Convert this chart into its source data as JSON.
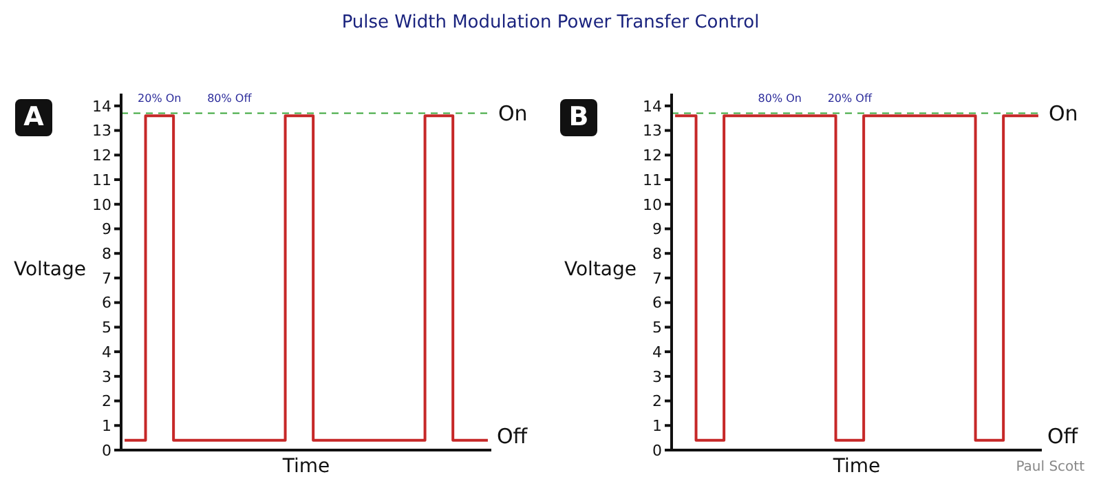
{
  "chart_data": [
    {
      "type": "step",
      "title": "Pulse Width Modulation Power Transfer Control",
      "subtitle": "A",
      "xlabel": "Time",
      "ylabel": "Voltage",
      "categories": [
        null,
        null,
        null,
        null,
        null,
        null,
        null,
        null,
        null,
        null,
        null,
        null,
        null,
        null,
        null,
        null,
        null,
        null,
        null,
        null,
        null,
        null,
        null,
        null,
        null,
        null,
        null,
        null,
        null,
        null,
        null,
        null,
        null,
        null,
        null,
        null,
        null,
        null,
        null,
        null,
        null,
        null,
        null,
        null,
        null,
        null,
        null,
        null,
        null,
        null,
        null,
        null,
        null
      ],
      "series": [
        {
          "color": "#c62828",
          "values": [
            0.4,
            0.4,
            0.4,
            13.6,
            13.6,
            13.6,
            13.6,
            0.4,
            0.4,
            0.4,
            0.4,
            0.4,
            0.4,
            0.4,
            0.4,
            0.4,
            0.4,
            0.4,
            0.4,
            0.4,
            0.4,
            0.4,
            0.4,
            13.6,
            13.6,
            13.6,
            13.6,
            0.4,
            0.4,
            0.4,
            0.4,
            0.4,
            0.4,
            0.4,
            0.4,
            0.4,
            0.4,
            0.4,
            0.4,
            0.4,
            0.4,
            0.4,
            0.4,
            13.6,
            13.6,
            13.6,
            13.6,
            0.4,
            0.4,
            0.4,
            0.4,
            0.4,
            0.4
          ]
        }
      ],
      "ylim": [
        0,
        14.5
      ],
      "yticks": [
        0,
        1,
        2,
        3,
        4,
        5,
        6,
        7,
        8,
        9,
        10,
        11,
        12,
        13,
        14
      ],
      "tick_labels": "y",
      "ref_lines": [
        {
          "axis": "y",
          "value": 13.7,
          "label": "On",
          "color": "#3aa63a",
          "line_style": "dashed"
        }
      ],
      "annotations": [
        "20% On",
        "80% Off",
        "Off"
      ]
    },
    {
      "type": "step",
      "subtitle": "B",
      "xlabel": "Time",
      "ylabel": "Voltage",
      "categories": [
        null,
        null,
        null,
        null,
        null,
        null,
        null,
        null,
        null,
        null,
        null,
        null,
        null,
        null,
        null,
        null,
        null,
        null,
        null,
        null,
        null,
        null,
        null,
        null,
        null,
        null,
        null,
        null,
        null,
        null,
        null,
        null,
        null,
        null,
        null,
        null,
        null,
        null,
        null,
        null,
        null,
        null,
        null,
        null,
        null,
        null,
        null,
        null,
        null,
        null,
        null,
        null,
        null
      ],
      "series": [
        {
          "color": "#c62828",
          "values": [
            13.6,
            13.6,
            13.6,
            0.4,
            0.4,
            0.4,
            0.4,
            13.6,
            13.6,
            13.6,
            13.6,
            13.6,
            13.6,
            13.6,
            13.6,
            13.6,
            13.6,
            13.6,
            13.6,
            13.6,
            13.6,
            13.6,
            13.6,
            0.4,
            0.4,
            0.4,
            0.4,
            13.6,
            13.6,
            13.6,
            13.6,
            13.6,
            13.6,
            13.6,
            13.6,
            13.6,
            13.6,
            13.6,
            13.6,
            13.6,
            13.6,
            13.6,
            13.6,
            0.4,
            0.4,
            0.4,
            0.4,
            13.6,
            13.6,
            13.6,
            13.6,
            13.6,
            13.6
          ]
        }
      ],
      "ylim": [
        0,
        14.5
      ],
      "yticks": [
        0,
        1,
        2,
        3,
        4,
        5,
        6,
        7,
        8,
        9,
        10,
        11,
        12,
        13,
        14
      ],
      "tick_labels": "y",
      "ref_lines": [
        {
          "axis": "y",
          "value": 13.7,
          "label": "On",
          "color": "#3aa63a",
          "line_style": "dashed"
        }
      ],
      "annotations": [
        "80% On",
        "20% Off",
        "Off",
        "Paul Scott"
      ]
    }
  ]
}
